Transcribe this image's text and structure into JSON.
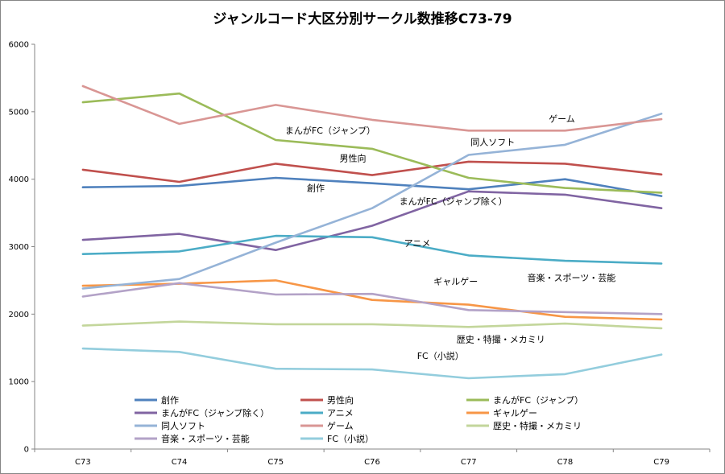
{
  "chart_data": {
    "type": "line",
    "title": "ジャンルコード大区分別サークル数推移C73-79",
    "xlabel": "",
    "ylabel": "",
    "categories": [
      "C73",
      "C74",
      "C75",
      "C76",
      "C77",
      "C78",
      "C79"
    ],
    "ylim": [
      0,
      6000
    ],
    "yticks": [
      0,
      1000,
      2000,
      3000,
      4000,
      5000,
      6000
    ],
    "grid": false,
    "legend_position": "bottom",
    "series": [
      {
        "name": "創作",
        "color": "#4f81bd",
        "values": [
          3880,
          3900,
          4020,
          3940,
          3850,
          4000,
          3750
        ]
      },
      {
        "name": "男性向",
        "color": "#c0504d",
        "values": [
          4140,
          3960,
          4230,
          4060,
          4260,
          4230,
          4070
        ]
      },
      {
        "name": "まんがFC（ジャンプ）",
        "color": "#9bbb59",
        "values": [
          5140,
          5270,
          4580,
          4450,
          4020,
          3870,
          3800
        ]
      },
      {
        "name": "まんがFC（ジャンプ除く）",
        "color": "#8064a2",
        "values": [
          3100,
          3190,
          2950,
          3310,
          3820,
          3770,
          3570
        ]
      },
      {
        "name": "アニメ",
        "color": "#4bacc6",
        "values": [
          2890,
          2930,
          3160,
          3140,
          2870,
          2790,
          2750
        ]
      },
      {
        "name": "ギャルゲー",
        "color": "#f79646",
        "values": [
          2420,
          2450,
          2500,
          2210,
          2140,
          1960,
          1920
        ]
      },
      {
        "name": "同人ソフト",
        "color": "#95b3d7",
        "values": [
          2380,
          2520,
          3060,
          3570,
          4360,
          4510,
          4970
        ]
      },
      {
        "name": "ゲーム",
        "color": "#d99694",
        "values": [
          5380,
          4820,
          5100,
          4880,
          4720,
          4720,
          4890
        ]
      },
      {
        "name": "歴史・特撮・メカミリ",
        "color": "#c3d69b",
        "values": [
          1830,
          1890,
          1850,
          1850,
          1810,
          1860,
          1790
        ]
      },
      {
        "name": "音楽・スポーツ・芸能",
        "color": "#b3a2c7",
        "values": [
          2260,
          2460,
          2290,
          2300,
          2060,
          2030,
          2000
        ]
      },
      {
        "name": "FC（小説）",
        "color": "#93cddd",
        "values": [
          1490,
          1440,
          1190,
          1180,
          1050,
          1110,
          1400
        ]
      }
    ],
    "annotations": [
      {
        "text": "ゲーム",
        "series": "ゲーム"
      },
      {
        "text": "まんがFC（ジャンプ）",
        "series": "まんがFC（ジャンプ）"
      },
      {
        "text": "同人ソフト",
        "series": "同人ソフト"
      },
      {
        "text": "男性向",
        "series": "男性向"
      },
      {
        "text": "創作",
        "series": "創作"
      },
      {
        "text": "まんがFC（ジャンプ除く）",
        "series": "まんがFC（ジャンプ除く）"
      },
      {
        "text": "アニメ",
        "series": "アニメ"
      },
      {
        "text": "ギャルゲー",
        "series": "ギャルゲー"
      },
      {
        "text": "音楽・スポーツ・芸能",
        "series": "音楽・スポーツ・芸能"
      },
      {
        "text": "歴史・特撮・メカミリ",
        "series": "歴史・特撮・メカミリ"
      },
      {
        "text": "FC（小説）",
        "series": "FC（小説）"
      }
    ]
  }
}
